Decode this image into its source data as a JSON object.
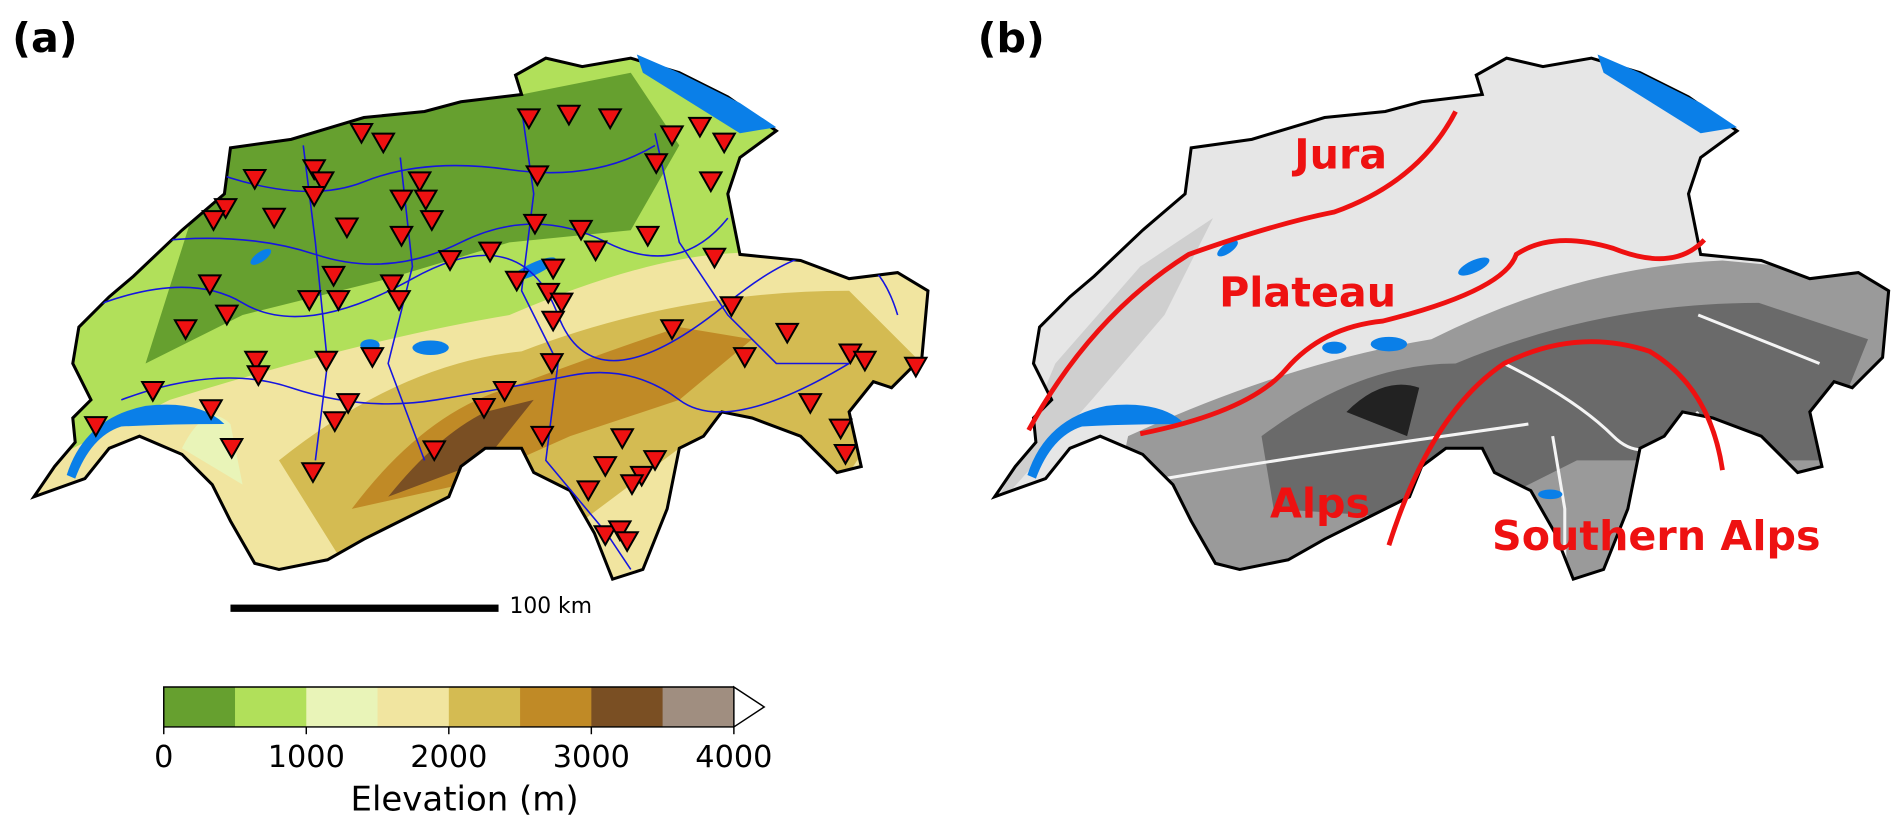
{
  "panels": [
    {
      "label": "(a)",
      "scale_bar": "100 km"
    },
    {
      "label": "(b)",
      "regions": [
        "Jura",
        "Plateau",
        "Alps",
        "Southern Alps"
      ],
      "region_color": "#ee1111"
    }
  ],
  "colorbar": {
    "label": "Elevation (m)",
    "lim": [
      0,
      4000
    ],
    "ticks": [
      0,
      1000,
      2000,
      3000,
      4000
    ],
    "colors": [
      "#66a02f",
      "#b1e05a",
      "#e9f4b8",
      "#f1e5a0",
      "#d4bb52",
      "#c08a26",
      "#7a4f23",
      "#a08e80"
    ],
    "extend": "max"
  }
}
